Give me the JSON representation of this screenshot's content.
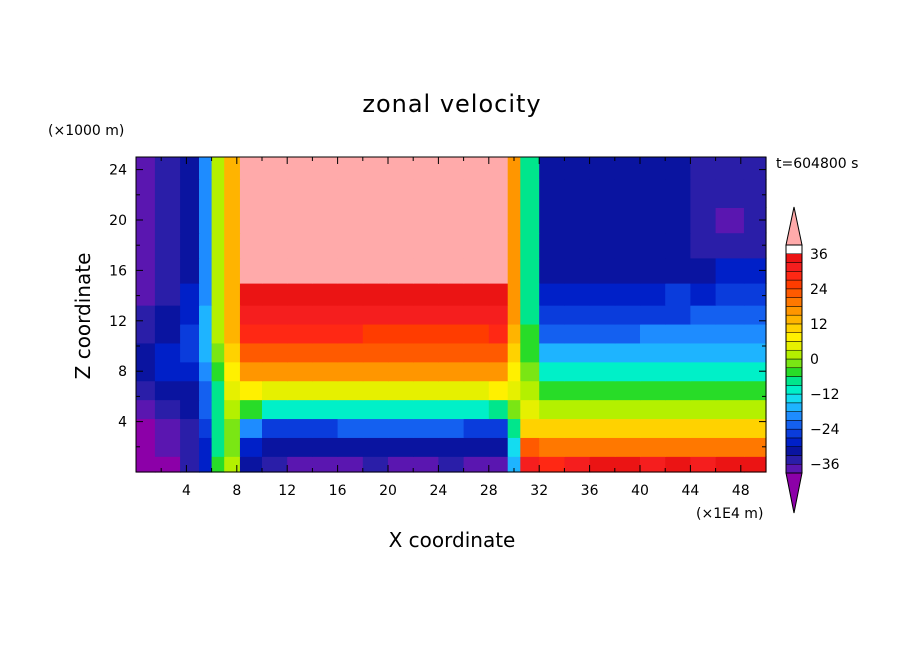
{
  "chart_data": {
    "type": "heatmap",
    "title": "zonal velocity",
    "xlabel": "X coordinate",
    "ylabel": "Z coordinate",
    "x_unit": "(×1E4 m)",
    "y_unit": "(×1000 m)",
    "time_label": "t=604800 s",
    "xlim": [
      0,
      50
    ],
    "ylim": [
      0,
      25
    ],
    "x_ticks": [
      4,
      8,
      12,
      16,
      20,
      24,
      28,
      32,
      36,
      40,
      44,
      48
    ],
    "y_ticks": [
      4,
      8,
      12,
      16,
      20,
      24
    ],
    "colorbar": {
      "levels": [
        -42,
        -39,
        -36,
        -33,
        -30,
        -27,
        -24,
        -21,
        -18,
        -15,
        -12,
        -9,
        -6,
        -3,
        0,
        3,
        6,
        9,
        12,
        15,
        18,
        21,
        24,
        27,
        30,
        33,
        36,
        39
      ],
      "labels": [
        36,
        24,
        12,
        0,
        -12,
        -24,
        -36
      ],
      "colors": [
        "#8c00a8",
        "#5a16b0",
        "#2a1ea8",
        "#0a14a0",
        "#0020c8",
        "#0a3cdc",
        "#1460f0",
        "#1e8cff",
        "#1eb4ff",
        "#14dcf0",
        "#00f0c8",
        "#00e68c",
        "#28dc28",
        "#7ae614",
        "#b4f000",
        "#e6f000",
        "#fff000",
        "#ffd200",
        "#ffb400",
        "#ff9600",
        "#ff7800",
        "#ff5a00",
        "#ff3c00",
        "#ff2814",
        "#f51e1e",
        "#eb1414",
        "#ffaaaa"
      ]
    },
    "sample_grid": {
      "x": [
        0.5,
        2.5,
        4.5,
        5.5,
        6.5,
        7.5,
        9,
        11,
        13,
        15,
        17,
        19,
        21,
        23,
        25,
        27,
        29,
        30,
        31,
        33,
        35,
        37,
        39,
        41,
        43,
        45,
        47,
        49.5
      ],
      "z": [
        0.5,
        2,
        3.5,
        5,
        6.5,
        8,
        9.5,
        11,
        12.5,
        14,
        16,
        18,
        20,
        22,
        24.5
      ],
      "u": [
        [
          -42,
          -42,
          -36,
          -30,
          -6,
          0,
          -33,
          -36,
          -39,
          -39,
          -39,
          -36,
          -39,
          -39,
          -36,
          -39,
          -39,
          -18,
          30,
          27,
          30,
          33,
          33,
          30,
          33,
          30,
          33,
          33
        ],
        [
          -42,
          -39,
          -36,
          -30,
          -9,
          -3,
          -30,
          -33,
          -33,
          -33,
          -33,
          -33,
          -33,
          -33,
          -33,
          -33,
          -33,
          -15,
          21,
          18,
          18,
          18,
          18,
          18,
          18,
          18,
          18,
          18
        ],
        [
          -42,
          -39,
          -36,
          -27,
          -9,
          -3,
          -21,
          -27,
          -27,
          -27,
          -24,
          -24,
          -24,
          -24,
          -24,
          -27,
          -27,
          -9,
          9,
          9,
          9,
          9,
          9,
          9,
          9,
          9,
          9,
          9
        ],
        [
          -39,
          -36,
          -33,
          -24,
          -9,
          0,
          -6,
          -12,
          -12,
          -12,
          -12,
          -12,
          -12,
          -12,
          -12,
          -12,
          -9,
          -3,
          3,
          0,
          0,
          0,
          0,
          0,
          0,
          0,
          0,
          0
        ],
        [
          -36,
          -33,
          -33,
          -24,
          -9,
          3,
          6,
          3,
          3,
          3,
          3,
          3,
          3,
          3,
          3,
          3,
          6,
          3,
          0,
          -6,
          -6,
          -6,
          -6,
          -6,
          -6,
          -6,
          -6,
          -6
        ],
        [
          -33,
          -30,
          -30,
          -21,
          -6,
          6,
          15,
          15,
          15,
          15,
          15,
          15,
          15,
          15,
          15,
          15,
          15,
          6,
          -3,
          -12,
          -12,
          -12,
          -12,
          -12,
          -12,
          -12,
          -12,
          -12
        ],
        [
          -33,
          -30,
          -27,
          -18,
          -3,
          9,
          21,
          21,
          21,
          21,
          21,
          21,
          21,
          21,
          21,
          21,
          21,
          9,
          -6,
          -18,
          -18,
          -18,
          -18,
          -18,
          -18,
          -18,
          -18,
          -18
        ],
        [
          -36,
          -33,
          -27,
          -18,
          0,
          12,
          27,
          27,
          27,
          27,
          27,
          24,
          24,
          24,
          24,
          24,
          27,
          12,
          -6,
          -24,
          -24,
          -24,
          -24,
          -21,
          -21,
          -21,
          -21,
          -21
        ],
        [
          -36,
          -33,
          -30,
          -18,
          0,
          12,
          30,
          30,
          30,
          30,
          30,
          30,
          30,
          30,
          30,
          30,
          30,
          15,
          -9,
          -27,
          -27,
          -27,
          -27,
          -27,
          -27,
          -24,
          -24,
          -24
        ],
        [
          -39,
          -36,
          -30,
          -21,
          0,
          12,
          33,
          33,
          33,
          33,
          33,
          33,
          33,
          33,
          33,
          33,
          33,
          15,
          -9,
          -30,
          -30,
          -30,
          -30,
          -30,
          -27,
          -30,
          -27,
          -27
        ],
        [
          -39,
          -36,
          -33,
          -21,
          0,
          12,
          36,
          39,
          39,
          39,
          36,
          36,
          36,
          36,
          36,
          36,
          36,
          15,
          -9,
          -33,
          -33,
          -33,
          -33,
          -33,
          -33,
          -33,
          -30,
          -30
        ],
        [
          -39,
          -36,
          -33,
          -21,
          0,
          12,
          36,
          39,
          39,
          39,
          36,
          36,
          36,
          36,
          36,
          36,
          36,
          15,
          -9,
          -33,
          -33,
          -33,
          -33,
          -33,
          -33,
          -36,
          -36,
          -36
        ],
        [
          -39,
          -36,
          -33,
          -21,
          0,
          12,
          36,
          39,
          39,
          39,
          36,
          39,
          39,
          36,
          36,
          36,
          36,
          15,
          -9,
          -33,
          -33,
          -33,
          -33,
          -33,
          -33,
          -36,
          -39,
          -36
        ],
        [
          -39,
          -36,
          -33,
          -21,
          0,
          12,
          36,
          36,
          36,
          39,
          39,
          39,
          39,
          36,
          36,
          36,
          36,
          15,
          -9,
          -33,
          -33,
          -33,
          -33,
          -33,
          -33,
          -36,
          -36,
          -36
        ],
        [
          -39,
          -36,
          -33,
          -21,
          0,
          12,
          36,
          36,
          36,
          39,
          39,
          39,
          39,
          36,
          36,
          36,
          36,
          15,
          -9,
          -33,
          -33,
          -33,
          -33,
          -33,
          -33,
          -36,
          -36,
          -36
        ]
      ]
    }
  }
}
